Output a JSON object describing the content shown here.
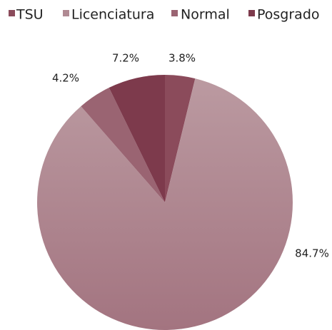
{
  "chart_data": {
    "type": "pie",
    "categories": [
      "TSU",
      "Licenciatura",
      "Normal",
      "Posgrado"
    ],
    "values": [
      3.8,
      84.7,
      4.2,
      7.2
    ],
    "value_labels": [
      "3.8%",
      "84.7%",
      "4.2%",
      "7.2%"
    ],
    "colors": [
      "#8b4b5b",
      "#b08a93",
      "#9a6472",
      "#7d3a4c"
    ],
    "legend": "top"
  }
}
